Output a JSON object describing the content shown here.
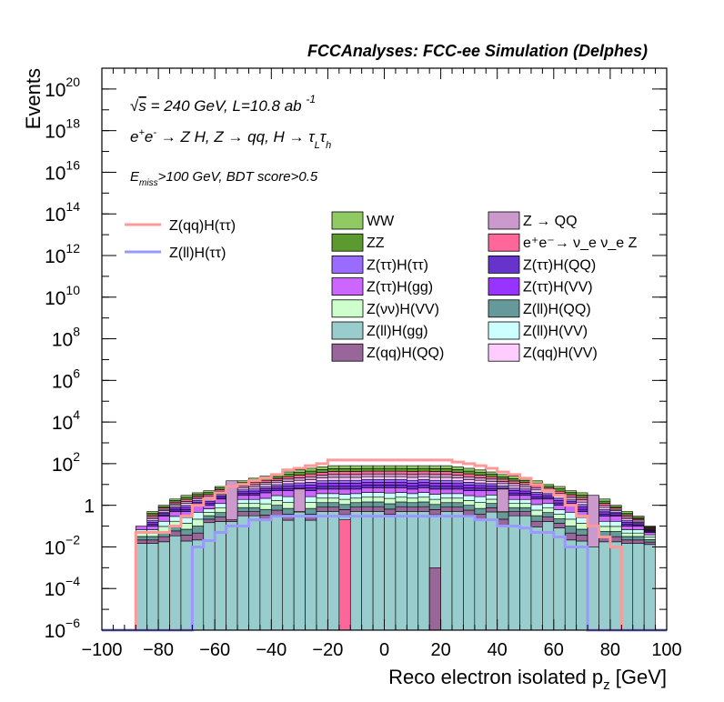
{
  "title": "FCCAnalyses: FCC-ee Simulation (Delphes)",
  "annotations": {
    "line1": "√s = 240 GeV, L=10.8 ab⁻¹",
    "line2": "e⁺e⁻ → Z H, Z → qq, H → τ_L τ_h",
    "line3": "E_miss>100 GeV, BDT score>0.5"
  },
  "chart_data": {
    "type": "histogram",
    "xlabel": "Reco electron isolated p_z [GeV]",
    "ylabel": "Events",
    "xlim": [
      -100,
      100
    ],
    "ylim": [
      1e-06,
      1e+21
    ],
    "log_y": true,
    "bin_width": 4,
    "x_ticks": [
      "−100",
      "−80",
      "−60",
      "−40",
      "−20",
      "0",
      "20",
      "40",
      "60",
      "80",
      "100"
    ],
    "y_ticks": [
      {
        "mant": "10",
        "exp": "−6",
        "v": 1e-06
      },
      {
        "mant": "10",
        "exp": "−4",
        "v": 0.0001
      },
      {
        "mant": "10",
        "exp": "−2",
        "v": 0.01
      },
      {
        "mant": "1",
        "exp": "",
        "v": 1
      },
      {
        "mant": "10",
        "exp": "2",
        "v": 100.0
      },
      {
        "mant": "10",
        "exp": "4",
        "v": 10000.0
      },
      {
        "mant": "10",
        "exp": "6",
        "v": 1000000.0
      },
      {
        "mant": "10",
        "exp": "8",
        "v": 100000000.0
      },
      {
        "mant": "10",
        "exp": "10",
        "v": 10000000000.0
      },
      {
        "mant": "10",
        "exp": "12",
        "v": 1000000000000.0
      },
      {
        "mant": "10",
        "exp": "14",
        "v": 100000000000000.0
      },
      {
        "mant": "10",
        "exp": "16",
        "v": 1e+16
      },
      {
        "mant": "10",
        "exp": "18",
        "v": 1e+18
      },
      {
        "mant": "10",
        "exp": "20",
        "v": 1e+20
      }
    ],
    "stack_bins": [
      [
        -88,
        -84,
        0.01,
        0.1,
        0.1
      ],
      [
        -84,
        -80,
        0.01,
        0.1,
        0.5
      ],
      [
        -80,
        -76,
        0.01,
        0.3,
        1
      ],
      [
        -76,
        -72,
        0.02,
        0.5,
        2
      ],
      [
        -72,
        -68,
        0.01,
        0.5,
        3
      ],
      [
        -68,
        -64,
        0.01,
        1,
        4
      ],
      [
        -64,
        -60,
        0.1,
        1,
        5
      ],
      [
        -60,
        -56,
        0.1,
        2,
        8
      ],
      [
        -56,
        -52,
        0.1,
        2,
        10
      ],
      [
        -52,
        -48,
        0.2,
        3,
        15
      ],
      [
        -48,
        -44,
        0.2,
        3,
        20
      ],
      [
        -44,
        -40,
        0.1,
        4,
        25
      ],
      [
        -40,
        -36,
        0.2,
        5,
        30
      ],
      [
        -36,
        -32,
        0.1,
        5,
        40
      ],
      [
        -32,
        -28,
        0.3,
        5,
        50
      ],
      [
        -28,
        -24,
        0.1,
        5,
        60
      ],
      [
        -24,
        -20,
        0.3,
        6,
        70
      ],
      [
        -20,
        -16,
        0.3,
        6,
        80
      ],
      [
        -16,
        -12,
        0.2,
        6,
        80
      ],
      [
        -12,
        -8,
        0.3,
        6,
        80
      ],
      [
        -8,
        -4,
        0.3,
        7,
        80
      ],
      [
        -4,
        0,
        0.3,
        7,
        80
      ],
      [
        0,
        4,
        0.2,
        7,
        80
      ],
      [
        4,
        8,
        0.3,
        7,
        80
      ],
      [
        8,
        12,
        0.3,
        6,
        80
      ],
      [
        12,
        16,
        0.3,
        7,
        80
      ],
      [
        16,
        20,
        0.2,
        6,
        80
      ],
      [
        20,
        24,
        0.3,
        6,
        80
      ],
      [
        24,
        28,
        0.3,
        6,
        70
      ],
      [
        28,
        32,
        0.2,
        5,
        60
      ],
      [
        32,
        36,
        0.1,
        5,
        50
      ],
      [
        36,
        40,
        0.3,
        5,
        40
      ],
      [
        40,
        44,
        0.05,
        4,
        30
      ],
      [
        44,
        48,
        0.2,
        3,
        25
      ],
      [
        48,
        52,
        0.2,
        3,
        20
      ],
      [
        52,
        56,
        0.05,
        2,
        15
      ],
      [
        56,
        60,
        0.1,
        2,
        10
      ],
      [
        60,
        64,
        0.05,
        1,
        8
      ],
      [
        64,
        68,
        0.01,
        1,
        5
      ],
      [
        68,
        72,
        0.01,
        0.5,
        4
      ],
      [
        72,
        76,
        0.01,
        0.5,
        3
      ],
      [
        76,
        80,
        0.01,
        0.3,
        2
      ],
      [
        80,
        84,
        0.01,
        0.3,
        1
      ],
      [
        84,
        88,
        0.01,
        0.1,
        0.5
      ],
      [
        88,
        92,
        0.01,
        0.1,
        0.3
      ],
      [
        92,
        96,
        0.01,
        0.05,
        0.1
      ]
    ],
    "series": [
      {
        "name": "WW",
        "color": "#8fcb62",
        "legend_col": 0
      },
      {
        "name": "ZZ",
        "color": "#5b9a2e",
        "legend_col": 0
      },
      {
        "name": "Z(ττ)H(ττ)",
        "color": "#9a6bff",
        "legend_col": 0
      },
      {
        "name": "Z(ττ)H(gg)",
        "color": "#cc66ff",
        "legend_col": 0
      },
      {
        "name": "Z(νν)H(VV)",
        "color": "#ccffcc",
        "legend_col": 0
      },
      {
        "name": "Z(ll)H(gg)",
        "color": "#99cccc",
        "legend_col": 0
      },
      {
        "name": "Z(qq)H(QQ)",
        "color": "#996699",
        "legend_col": 0
      },
      {
        "name": "Z → QQ",
        "color": "#cc99cc",
        "legend_col": 1
      },
      {
        "name": "e⁺e⁻→ ν_e ν_e Z",
        "color": "#ff6699",
        "legend_col": 1
      },
      {
        "name": "Z(ττ)H(QQ)",
        "color": "#6633cc",
        "legend_col": 1
      },
      {
        "name": "Z(ττ)H(VV)",
        "color": "#9933ff",
        "legend_col": 1
      },
      {
        "name": "Z(ll)H(QQ)",
        "color": "#669999",
        "legend_col": 1
      },
      {
        "name": "Z(ll)H(VV)",
        "color": "#ccffff",
        "legend_col": 1
      },
      {
        "name": "Z(qq)H(VV)",
        "color": "#ffccff",
        "legend_col": 1
      }
    ],
    "spikes": [
      {
        "x0": -56,
        "x1": -52,
        "ylo": 0.2,
        "yhi": 15,
        "color": "#cc99cc"
      },
      {
        "x0": -16,
        "x1": -12,
        "ylo": 1e-06,
        "yhi": 0.2,
        "color": "#ff6699"
      },
      {
        "x0": -32,
        "x1": -28,
        "ylo": 0.5,
        "yhi": 6,
        "color": "#cc99cc"
      },
      {
        "x0": 16,
        "x1": 20,
        "ylo": 1e-06,
        "yhi": 0.001,
        "color": "#996699"
      },
      {
        "x0": 40,
        "x1": 44,
        "ylo": 0.5,
        "yhi": 6,
        "color": "#cc99cc"
      },
      {
        "x0": 72,
        "x1": 76,
        "ylo": 0.01,
        "yhi": 3,
        "color": "#cc99cc"
      }
    ],
    "overlays": [
      {
        "name": "Z(qq)H(ττ)",
        "color": "#ff9999",
        "bins": [
          [
            -92,
            -88,
            1e-06
          ],
          [
            -88,
            -84,
            0.05
          ],
          [
            -84,
            -80,
            0.05
          ],
          [
            -80,
            -76,
            0.05
          ],
          [
            -76,
            -72,
            0.1
          ],
          [
            -72,
            -68,
            0.3
          ],
          [
            -68,
            -64,
            1
          ],
          [
            -64,
            -60,
            2
          ],
          [
            -60,
            -56,
            4
          ],
          [
            -56,
            -52,
            8
          ],
          [
            -52,
            -48,
            10
          ],
          [
            -48,
            -44,
            15
          ],
          [
            -44,
            -40,
            20
          ],
          [
            -40,
            -36,
            30
          ],
          [
            -36,
            -32,
            50
          ],
          [
            -32,
            -28,
            60
          ],
          [
            -28,
            -24,
            80
          ],
          [
            -24,
            -20,
            100
          ],
          [
            -20,
            -16,
            150
          ],
          [
            -16,
            -12,
            150
          ],
          [
            -12,
            -8,
            150
          ],
          [
            -8,
            -4,
            150
          ],
          [
            -4,
            0,
            150
          ],
          [
            0,
            4,
            150
          ],
          [
            4,
            8,
            150
          ],
          [
            8,
            12,
            150
          ],
          [
            12,
            16,
            150
          ],
          [
            16,
            20,
            150
          ],
          [
            20,
            24,
            150
          ],
          [
            24,
            28,
            120
          ],
          [
            28,
            32,
            100
          ],
          [
            32,
            36,
            80
          ],
          [
            36,
            40,
            60
          ],
          [
            40,
            44,
            40
          ],
          [
            44,
            48,
            30
          ],
          [
            48,
            52,
            20
          ],
          [
            52,
            56,
            10
          ],
          [
            56,
            60,
            5
          ],
          [
            60,
            64,
            3
          ],
          [
            64,
            68,
            1
          ],
          [
            68,
            72,
            0.3
          ],
          [
            72,
            76,
            0.1
          ],
          [
            76,
            80,
            0.03
          ],
          [
            80,
            84,
            0.01
          ],
          [
            84,
            88,
            1e-06
          ]
        ]
      },
      {
        "name": "Z(ll)H(ττ)",
        "color": "#9999ff",
        "bins": [
          [
            -100,
            -88,
            1e-06
          ],
          [
            -88,
            -84,
            1e-06
          ],
          [
            -84,
            -80,
            1e-06
          ],
          [
            -80,
            -76,
            1e-06
          ],
          [
            -76,
            -72,
            1e-06
          ],
          [
            -72,
            -68,
            1e-06
          ],
          [
            -68,
            -64,
            0.01
          ],
          [
            -64,
            -60,
            0.02
          ],
          [
            -60,
            -56,
            0.05
          ],
          [
            -56,
            -52,
            0.1
          ],
          [
            -52,
            -48,
            0.1
          ],
          [
            -48,
            -44,
            0.2
          ],
          [
            -44,
            -40,
            0.2
          ],
          [
            -40,
            -36,
            0.3
          ],
          [
            -36,
            -32,
            0.3
          ],
          [
            -32,
            -28,
            0.3
          ],
          [
            -28,
            -24,
            0.3
          ],
          [
            -24,
            -20,
            0.3
          ],
          [
            -20,
            -16,
            0.3
          ],
          [
            -16,
            -12,
            0.3
          ],
          [
            -12,
            -8,
            0.3
          ],
          [
            -8,
            -4,
            0.3
          ],
          [
            -4,
            0,
            0.3
          ],
          [
            0,
            4,
            0.3
          ],
          [
            4,
            8,
            0.3
          ],
          [
            8,
            12,
            0.3
          ],
          [
            12,
            16,
            0.3
          ],
          [
            16,
            20,
            0.3
          ],
          [
            20,
            24,
            0.3
          ],
          [
            24,
            28,
            0.3
          ],
          [
            28,
            32,
            0.3
          ],
          [
            32,
            36,
            0.2
          ],
          [
            36,
            40,
            0.2
          ],
          [
            40,
            44,
            0.1
          ],
          [
            44,
            48,
            0.1
          ],
          [
            48,
            52,
            0.08
          ],
          [
            52,
            56,
            0.05
          ],
          [
            56,
            60,
            0.05
          ],
          [
            60,
            64,
            0.03
          ],
          [
            64,
            68,
            0.01
          ],
          [
            68,
            72,
            0.01
          ],
          [
            72,
            76,
            1e-06
          ],
          [
            76,
            80,
            1e-06
          ],
          [
            80,
            100,
            1e-06
          ]
        ]
      }
    ]
  }
}
